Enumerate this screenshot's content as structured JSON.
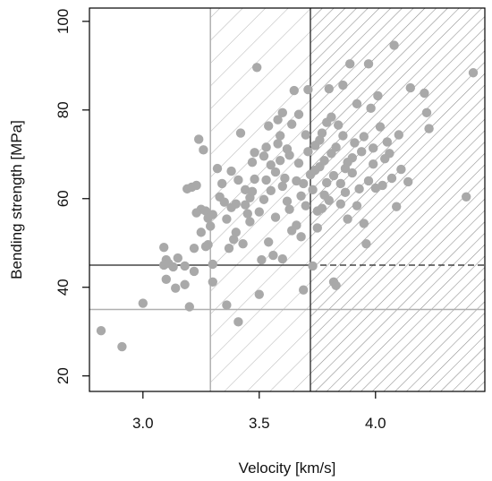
{
  "chart_data": {
    "type": "scatter",
    "title": "",
    "xlabel": "Velocity [km/s]",
    "ylabel": "Bending strength  [MPa]",
    "xlim": [
      2.77,
      4.47
    ],
    "ylim": [
      16.5,
      103
    ],
    "xticks": [
      3.0,
      3.5,
      4.0
    ],
    "xtick_labels": [
      "3.0",
      "3.5",
      "4.0"
    ],
    "yticks": [
      20,
      40,
      60,
      80,
      100
    ],
    "ytick_labels": [
      "20",
      "40",
      "60",
      "80",
      "100"
    ],
    "grid": false,
    "colors": {
      "points": "#a9a9a9",
      "light_lines": "#b0b0b0",
      "dark_lines": "#222222",
      "axis": "#000000"
    },
    "reference_lines": {
      "light_vertical_x": 3.29,
      "dark_vertical_x": 3.72,
      "light_horizontal_y": 35,
      "dark_horizontal_y": 45
    },
    "shaded_regions": [
      {
        "x_from": 3.29,
        "x_to": 3.72,
        "pattern": "light-hatch"
      },
      {
        "x_from": 3.72,
        "x_to": 4.47,
        "pattern": "dark-hatch"
      }
    ],
    "points": [
      {
        "x": 2.82,
        "y": 30.2
      },
      {
        "x": 2.91,
        "y": 26.6
      },
      {
        "x": 3.0,
        "y": 36.4
      },
      {
        "x": 3.09,
        "y": 49.0
      },
      {
        "x": 3.09,
        "y": 45.0
      },
      {
        "x": 3.1,
        "y": 46.2
      },
      {
        "x": 3.11,
        "y": 45.4
      },
      {
        "x": 3.1,
        "y": 41.8
      },
      {
        "x": 3.13,
        "y": 44.6
      },
      {
        "x": 3.15,
        "y": 46.6
      },
      {
        "x": 3.18,
        "y": 44.8
      },
      {
        "x": 3.18,
        "y": 40.6
      },
      {
        "x": 3.2,
        "y": 35.6
      },
      {
        "x": 3.22,
        "y": 48.8
      },
      {
        "x": 3.19,
        "y": 62.2
      },
      {
        "x": 3.21,
        "y": 62.6
      },
      {
        "x": 3.23,
        "y": 63.0
      },
      {
        "x": 3.24,
        "y": 73.4
      },
      {
        "x": 3.26,
        "y": 71.0
      },
      {
        "x": 3.25,
        "y": 57.6
      },
      {
        "x": 3.27,
        "y": 57.2
      },
      {
        "x": 3.28,
        "y": 55.6
      },
      {
        "x": 3.3,
        "y": 56.4
      },
      {
        "x": 3.29,
        "y": 53.8
      },
      {
        "x": 3.28,
        "y": 49.6
      },
      {
        "x": 3.3,
        "y": 45.2
      },
      {
        "x": 3.3,
        "y": 41.2
      },
      {
        "x": 3.32,
        "y": 66.8
      },
      {
        "x": 3.33,
        "y": 60.4
      },
      {
        "x": 3.35,
        "y": 59.2
      },
      {
        "x": 3.36,
        "y": 36.0
      },
      {
        "x": 3.38,
        "y": 58.0
      },
      {
        "x": 3.39,
        "y": 50.8
      },
      {
        "x": 3.4,
        "y": 52.4
      },
      {
        "x": 3.41,
        "y": 64.2
      },
      {
        "x": 3.42,
        "y": 74.8
      },
      {
        "x": 3.41,
        "y": 32.2
      },
      {
        "x": 3.44,
        "y": 62.0
      },
      {
        "x": 3.45,
        "y": 56.6
      },
      {
        "x": 3.46,
        "y": 60.2
      },
      {
        "x": 3.47,
        "y": 68.2
      },
      {
        "x": 3.48,
        "y": 70.4
      },
      {
        "x": 3.49,
        "y": 89.6
      },
      {
        "x": 3.5,
        "y": 38.4
      },
      {
        "x": 3.51,
        "y": 46.2
      },
      {
        "x": 3.52,
        "y": 69.6
      },
      {
        "x": 3.53,
        "y": 71.6
      },
      {
        "x": 3.54,
        "y": 76.4
      },
      {
        "x": 3.55,
        "y": 61.8
      },
      {
        "x": 3.56,
        "y": 47.2
      },
      {
        "x": 3.57,
        "y": 66.0
      },
      {
        "x": 3.58,
        "y": 72.4
      },
      {
        "x": 3.59,
        "y": 74.2
      },
      {
        "x": 3.6,
        "y": 79.4
      },
      {
        "x": 3.61,
        "y": 64.6
      },
      {
        "x": 3.62,
        "y": 59.4
      },
      {
        "x": 3.63,
        "y": 69.8
      },
      {
        "x": 3.64,
        "y": 52.8
      },
      {
        "x": 3.65,
        "y": 84.4
      },
      {
        "x": 3.66,
        "y": 64.0
      },
      {
        "x": 3.67,
        "y": 79.0
      },
      {
        "x": 3.68,
        "y": 60.6
      },
      {
        "x": 3.69,
        "y": 39.4
      },
      {
        "x": 3.7,
        "y": 74.4
      },
      {
        "x": 3.71,
        "y": 84.6
      },
      {
        "x": 3.72,
        "y": 65.4
      },
      {
        "x": 3.73,
        "y": 44.8
      },
      {
        "x": 3.74,
        "y": 72.0
      },
      {
        "x": 3.75,
        "y": 57.2
      },
      {
        "x": 3.76,
        "y": 67.2
      },
      {
        "x": 3.77,
        "y": 74.8
      },
      {
        "x": 3.78,
        "y": 60.8
      },
      {
        "x": 3.79,
        "y": 77.2
      },
      {
        "x": 3.8,
        "y": 84.8
      },
      {
        "x": 3.81,
        "y": 70.2
      },
      {
        "x": 3.82,
        "y": 41.2
      },
      {
        "x": 3.83,
        "y": 40.4
      },
      {
        "x": 3.84,
        "y": 76.6
      },
      {
        "x": 3.85,
        "y": 63.4
      },
      {
        "x": 3.86,
        "y": 85.6
      },
      {
        "x": 3.87,
        "y": 66.8
      },
      {
        "x": 3.88,
        "y": 55.4
      },
      {
        "x": 3.89,
        "y": 90.4
      },
      {
        "x": 3.9,
        "y": 69.2
      },
      {
        "x": 3.91,
        "y": 72.6
      },
      {
        "x": 3.92,
        "y": 81.4
      },
      {
        "x": 3.93,
        "y": 62.2
      },
      {
        "x": 3.95,
        "y": 54.4
      },
      {
        "x": 3.96,
        "y": 49.8
      },
      {
        "x": 3.97,
        "y": 90.4
      },
      {
        "x": 3.98,
        "y": 80.4
      },
      {
        "x": 3.99,
        "y": 67.8
      },
      {
        "x": 4.0,
        "y": 62.4
      },
      {
        "x": 4.01,
        "y": 83.2
      },
      {
        "x": 4.02,
        "y": 76.2
      },
      {
        "x": 4.03,
        "y": 63.0
      },
      {
        "x": 4.05,
        "y": 72.8
      },
      {
        "x": 4.06,
        "y": 70.2
      },
      {
        "x": 4.07,
        "y": 64.6
      },
      {
        "x": 4.08,
        "y": 94.6
      },
      {
        "x": 4.09,
        "y": 58.2
      },
      {
        "x": 4.1,
        "y": 74.4
      },
      {
        "x": 4.14,
        "y": 63.8
      },
      {
        "x": 4.15,
        "y": 85.0
      },
      {
        "x": 4.21,
        "y": 83.8
      },
      {
        "x": 4.22,
        "y": 79.4
      },
      {
        "x": 4.23,
        "y": 75.8
      },
      {
        "x": 4.39,
        "y": 60.4
      },
      {
        "x": 4.42,
        "y": 88.4
      },
      {
        "x": 3.23,
        "y": 56.8
      },
      {
        "x": 3.25,
        "y": 52.4
      },
      {
        "x": 3.27,
        "y": 49.2
      },
      {
        "x": 3.34,
        "y": 63.4
      },
      {
        "x": 3.36,
        "y": 55.4
      },
      {
        "x": 3.37,
        "y": 48.8
      },
      {
        "x": 3.38,
        "y": 66.2
      },
      {
        "x": 3.4,
        "y": 58.8
      },
      {
        "x": 3.43,
        "y": 49.8
      },
      {
        "x": 3.44,
        "y": 58.6
      },
      {
        "x": 3.46,
        "y": 54.8
      },
      {
        "x": 3.47,
        "y": 61.6
      },
      {
        "x": 3.48,
        "y": 64.4
      },
      {
        "x": 3.5,
        "y": 57.0
      },
      {
        "x": 3.52,
        "y": 59.8
      },
      {
        "x": 3.53,
        "y": 64.2
      },
      {
        "x": 3.55,
        "y": 67.6
      },
      {
        "x": 3.57,
        "y": 55.8
      },
      {
        "x": 3.59,
        "y": 68.6
      },
      {
        "x": 3.6,
        "y": 62.8
      },
      {
        "x": 3.62,
        "y": 71.2
      },
      {
        "x": 3.63,
        "y": 57.6
      },
      {
        "x": 3.64,
        "y": 76.8
      },
      {
        "x": 3.66,
        "y": 54.0
      },
      {
        "x": 3.67,
        "y": 68.0
      },
      {
        "x": 3.69,
        "y": 63.4
      },
      {
        "x": 3.7,
        "y": 58.4
      },
      {
        "x": 3.71,
        "y": 70.6
      },
      {
        "x": 3.73,
        "y": 62.0
      },
      {
        "x": 3.74,
        "y": 66.4
      },
      {
        "x": 3.75,
        "y": 53.4
      },
      {
        "x": 3.76,
        "y": 73.2
      },
      {
        "x": 3.77,
        "y": 57.8
      },
      {
        "x": 3.78,
        "y": 68.6
      },
      {
        "x": 3.79,
        "y": 63.6
      },
      {
        "x": 3.8,
        "y": 59.6
      },
      {
        "x": 3.81,
        "y": 78.4
      },
      {
        "x": 3.82,
        "y": 65.2
      },
      {
        "x": 3.83,
        "y": 71.6
      },
      {
        "x": 3.85,
        "y": 58.8
      },
      {
        "x": 3.86,
        "y": 74.2
      },
      {
        "x": 3.87,
        "y": 61.4
      },
      {
        "x": 3.88,
        "y": 68.2
      },
      {
        "x": 3.9,
        "y": 65.8
      },
      {
        "x": 3.92,
        "y": 58.4
      },
      {
        "x": 3.94,
        "y": 70.6
      },
      {
        "x": 3.95,
        "y": 74.0
      },
      {
        "x": 3.97,
        "y": 64.0
      },
      {
        "x": 3.99,
        "y": 71.4
      },
      {
        "x": 4.04,
        "y": 69.0
      },
      {
        "x": 4.11,
        "y": 66.6
      },
      {
        "x": 3.14,
        "y": 39.8
      },
      {
        "x": 3.22,
        "y": 43.6
      },
      {
        "x": 3.54,
        "y": 50.2
      },
      {
        "x": 3.6,
        "y": 46.4
      },
      {
        "x": 3.68,
        "y": 51.4
      },
      {
        "x": 3.58,
        "y": 77.8
      }
    ]
  }
}
